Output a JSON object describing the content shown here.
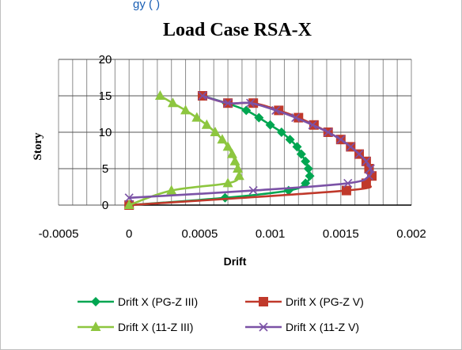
{
  "top_fragment": "gy (                    )",
  "chart_data": {
    "type": "line",
    "title": "Load Case RSA-X",
    "xlabel": "Drift",
    "ylabel": "Story",
    "xlim": [
      -0.0005,
      0.002
    ],
    "ylim": [
      0,
      20
    ],
    "x_ticks": [
      "-0.0005",
      "0",
      "0.0005",
      "0.001",
      "0.0015",
      "0.002"
    ],
    "y_ticks": [
      "0",
      "5",
      "10",
      "15",
      "20"
    ],
    "grid": "vertical-minor-and-horizontal",
    "legend_position": "bottom",
    "series": [
      {
        "name": "Drift X (PG-Z III)",
        "color": "#00a651",
        "marker": "diamond",
        "points": [
          [
            0,
            0
          ],
          [
            0.00068,
            1
          ],
          [
            0.00113,
            2
          ],
          [
            0.00125,
            3
          ],
          [
            0.00128,
            4
          ],
          [
            0.00127,
            5
          ],
          [
            0.00125,
            6
          ],
          [
            0.00122,
            7
          ],
          [
            0.00119,
            8
          ],
          [
            0.00114,
            9
          ],
          [
            0.00108,
            10
          ],
          [
            0.001,
            11
          ],
          [
            0.00092,
            12
          ],
          [
            0.00083,
            13
          ],
          [
            0.00069,
            14
          ],
          [
            0.00052,
            15
          ]
        ]
      },
      {
        "name": "Drift X (PG-Z V)",
        "color": "#c0392b",
        "marker": "square",
        "points": [
          [
            0,
            0
          ],
          [
            0.00154,
            2
          ],
          [
            0.00168,
            3
          ],
          [
            0.00172,
            4
          ],
          [
            0.0017,
            5
          ],
          [
            0.00168,
            6
          ],
          [
            0.00163,
            7
          ],
          [
            0.00157,
            8
          ],
          [
            0.0015,
            9
          ],
          [
            0.00141,
            10
          ],
          [
            0.00131,
            11
          ],
          [
            0.0012,
            12
          ],
          [
            0.00106,
            13
          ],
          [
            0.00088,
            14
          ],
          [
            0.0007,
            14
          ],
          [
            0.00052,
            15
          ]
        ]
      },
      {
        "name": "Drift X (11-Z III)",
        "color": "#8dc63f",
        "marker": "triangle",
        "points": [
          [
            0,
            0
          ],
          [
            0.0003,
            2
          ],
          [
            0.0007,
            3
          ],
          [
            0.00078,
            4
          ],
          [
            0.00077,
            5
          ],
          [
            0.00075,
            6
          ],
          [
            0.00073,
            7
          ],
          [
            0.0007,
            8
          ],
          [
            0.00066,
            9
          ],
          [
            0.00061,
            10
          ],
          [
            0.00055,
            11
          ],
          [
            0.00048,
            12
          ],
          [
            0.0004,
            13
          ],
          [
            0.00031,
            14
          ],
          [
            0.00022,
            15
          ]
        ]
      },
      {
        "name": "Drift X (11-Z V)",
        "color": "#7b52a6",
        "marker": "x",
        "points": [
          [
            0,
            1
          ],
          [
            0.00088,
            2
          ],
          [
            0.00155,
            3
          ],
          [
            0.0017,
            4
          ],
          [
            0.00171,
            5
          ],
          [
            0.00168,
            6
          ],
          [
            0.00163,
            7
          ],
          [
            0.00157,
            8
          ],
          [
            0.0015,
            9
          ],
          [
            0.00141,
            10
          ],
          [
            0.0013,
            11
          ],
          [
            0.00118,
            12
          ],
          [
            0.00104,
            13
          ],
          [
            0.00086,
            14
          ],
          [
            0.0007,
            14
          ],
          [
            0.00052,
            15
          ]
        ]
      }
    ]
  }
}
